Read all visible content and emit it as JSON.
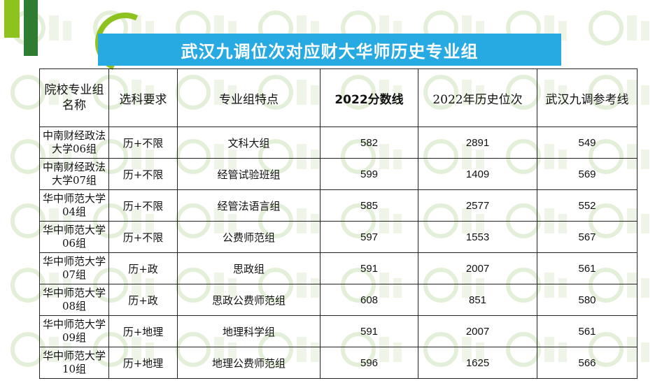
{
  "banner": {
    "title": "武汉九调位次对应财大华师历史专业组"
  },
  "table": {
    "headers": {
      "school": "院校专业组名称",
      "subject": "选科要求",
      "feature": "专业组特点",
      "score2022": "2022分数线",
      "rank2022": "2022年历史位次",
      "ref": "武汉九调参考线"
    },
    "rows": [
      {
        "school": "中南财经政法大学06组",
        "subject": "历+不限",
        "feature": "文科大组",
        "score2022": "582",
        "rank2022": "2891",
        "ref": "549"
      },
      {
        "school": "中南财经政法大学07组",
        "subject": "历+不限",
        "feature": "经管试验班组",
        "score2022": "599",
        "rank2022": "1409",
        "ref": "569"
      },
      {
        "school": "华中师范大学04组",
        "subject": "历+不限",
        "feature": "经管法语言组",
        "score2022": "585",
        "rank2022": "2577",
        "ref": "552"
      },
      {
        "school": "华中师范大学06组",
        "subject": "历+不限",
        "feature": "公费师范组",
        "score2022": "597",
        "rank2022": "1553",
        "ref": "567"
      },
      {
        "school": "华中师范大学07组",
        "subject": "历+政",
        "feature": "思政组",
        "score2022": "591",
        "rank2022": "2007",
        "ref": "561"
      },
      {
        "school": "华中师范大学08组",
        "subject": "历+政",
        "feature": "思政公费师范组",
        "score2022": "608",
        "rank2022": "851",
        "ref": "580"
      },
      {
        "school": "华中师范大学09组",
        "subject": "历+地理",
        "feature": "地理科学组",
        "score2022": "591",
        "rank2022": "2007",
        "ref": "561"
      },
      {
        "school": "华中师范大学10组",
        "subject": "历+地理",
        "feature": "地理公费师范组",
        "score2022": "596",
        "rank2022": "1625",
        "ref": "566"
      }
    ]
  }
}
